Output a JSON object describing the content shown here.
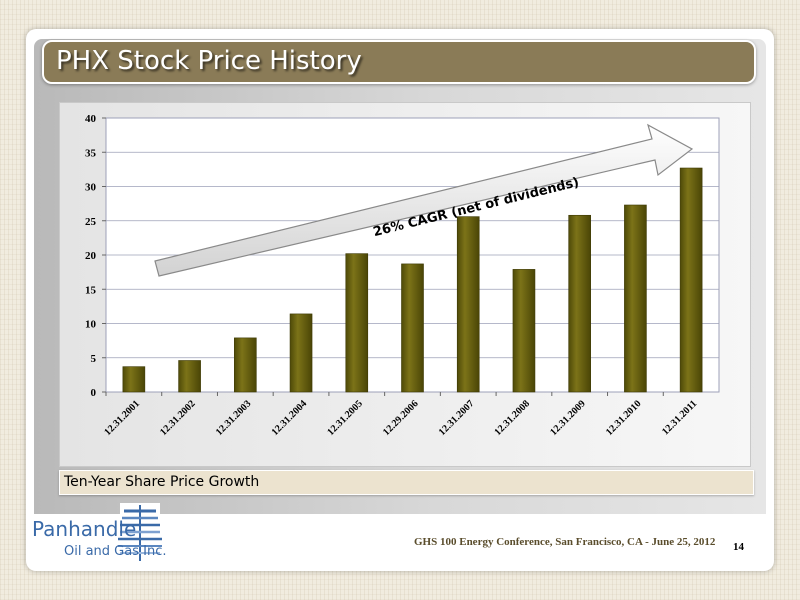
{
  "slide": {
    "title": "PHX Stock Price History",
    "caption": "Ten-Year Share Price Growth",
    "footer": "GHS 100 Energy Conference, San Francisco, CA - June 25, 2012",
    "page_number": "14"
  },
  "logo": {
    "line1": "Panhandle",
    "line2": "Oil and Gas Inc."
  },
  "annotation": {
    "text": "26% CAGR  (net of dividends)"
  },
  "colors": {
    "title_bar": "#8a7b57",
    "bar_fill": "#6b6410",
    "caption_bar": "#ece3cf",
    "logo_blue": "#3a6aa8"
  },
  "chart_data": {
    "type": "bar",
    "categories": [
      "12.31.2001",
      "12.31.2002",
      "12.31.2003",
      "12.31.2004",
      "12.31.2005",
      "12.29.2006",
      "12.31.2007",
      "12.31.2008",
      "12.31.2009",
      "12.31.2010",
      "12.31.2011"
    ],
    "values": [
      3.7,
      4.6,
      7.9,
      11.4,
      20.2,
      18.7,
      25.6,
      17.9,
      25.8,
      27.3,
      32.7
    ],
    "ylim": [
      0,
      40
    ],
    "yticks": [
      "0",
      "5",
      "10",
      "15",
      "20",
      "25",
      "30",
      "35",
      "40"
    ],
    "grid": true,
    "legend": "none"
  }
}
